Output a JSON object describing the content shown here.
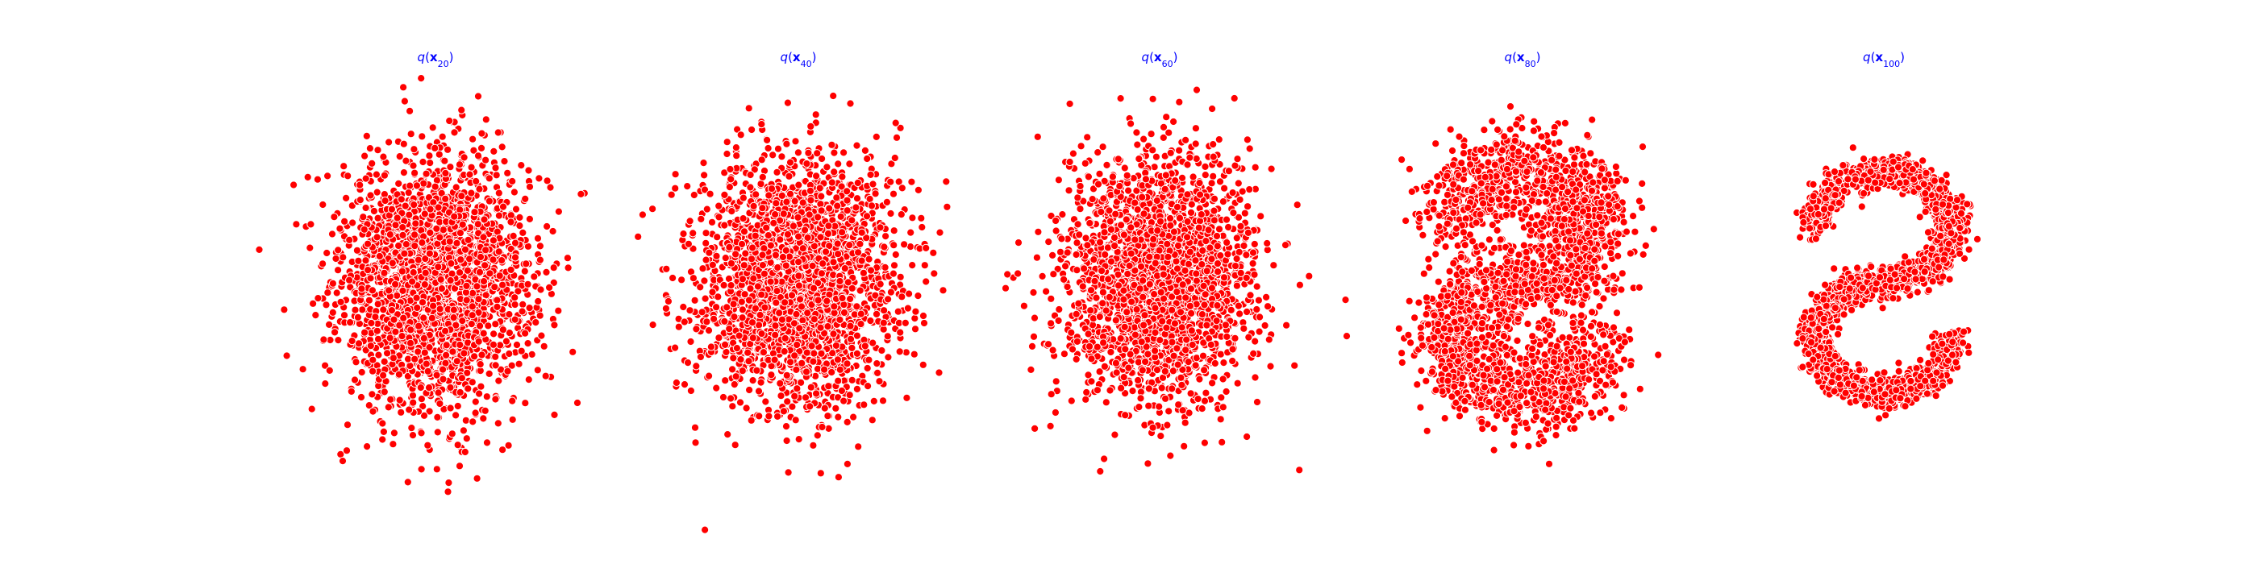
{
  "chart_data": [
    {
      "type": "scatter",
      "title": {
        "func": "q",
        "var": "x",
        "sub": "20"
      },
      "marker_color": "#ff0000",
      "marker_edge_color": "#ffffff",
      "title_color": "#0000ff",
      "axes_visible": false,
      "xlim": [
        -4.2,
        4.2
      ],
      "ylim": [
        -4.2,
        4.2
      ],
      "distribution": {
        "kind": "gaussian",
        "mean": [
          0,
          0
        ],
        "std": [
          0.95,
          1.25
        ],
        "n_points": 2400
      }
    },
    {
      "type": "scatter",
      "title": {
        "func": "q",
        "var": "x",
        "sub": "40"
      },
      "marker_color": "#ff0000",
      "marker_edge_color": "#ffffff",
      "title_color": "#0000ff",
      "axes_visible": false,
      "xlim": [
        -4.2,
        4.2
      ],
      "ylim": [
        -4.2,
        4.2
      ],
      "distribution": {
        "kind": "gaussian",
        "mean": [
          0,
          0
        ],
        "std": [
          0.95,
          1.25
        ],
        "n_points": 2400
      }
    },
    {
      "type": "scatter",
      "title": {
        "func": "q",
        "var": "x",
        "sub": "60"
      },
      "marker_color": "#ff0000",
      "marker_edge_color": "#ffffff",
      "title_color": "#0000ff",
      "axes_visible": false,
      "xlim": [
        -4.2,
        4.2
      ],
      "ylim": [
        -4.2,
        4.2
      ],
      "distribution": {
        "kind": "gaussian",
        "mean": [
          0,
          0
        ],
        "std": [
          0.95,
          1.2
        ],
        "n_points": 2400
      }
    },
    {
      "type": "scatter",
      "title": {
        "func": "q",
        "var": "x",
        "sub": "80"
      },
      "marker_color": "#ff0000",
      "marker_edge_color": "#ffffff",
      "title_color": "#0000ff",
      "axes_visible": false,
      "xlim": [
        -4.2,
        4.2
      ],
      "ylim": [
        -4.2,
        4.2
      ],
      "distribution": {
        "kind": "s_curve_blurred",
        "noise": 0.85,
        "n_points": 2400
      }
    },
    {
      "type": "scatter",
      "title": {
        "func": "q",
        "var": "x",
        "sub": "100"
      },
      "marker_color": "#ff0000",
      "marker_edge_color": "#ffffff",
      "title_color": "#0000ff",
      "axes_visible": false,
      "xlim": [
        -4.2,
        4.2
      ],
      "ylim": [
        -4.2,
        4.2
      ],
      "distribution": {
        "kind": "s_curve",
        "noise": 0.3,
        "n_points": 2400
      }
    }
  ]
}
